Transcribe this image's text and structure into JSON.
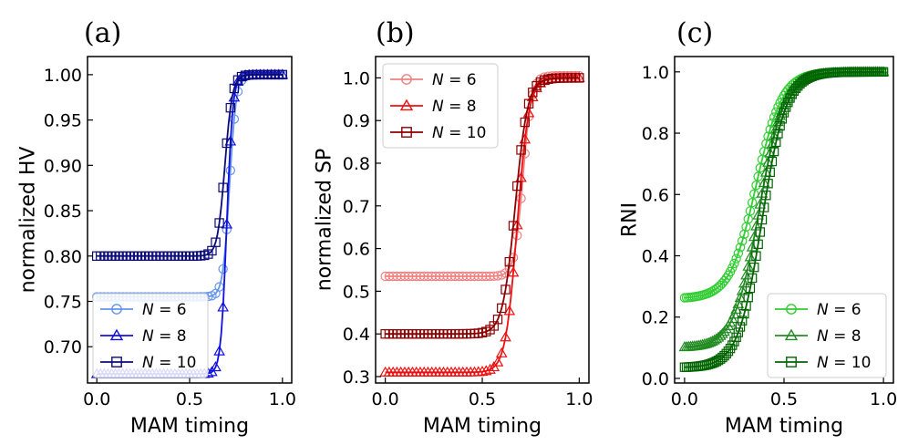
{
  "chart_data": [
    {
      "type": "line",
      "panel_label": "(a)",
      "xlabel": "MAM timing",
      "ylabel": "normalized HV",
      "xlim": [
        -0.05,
        1.05
      ],
      "ylim": [
        0.66,
        1.02
      ],
      "xticks": [
        0.0,
        0.5,
        1.0
      ],
      "xtick_labels": [
        "0.0",
        "0.5",
        "1.0"
      ],
      "yticks": [
        0.7,
        0.75,
        0.8,
        0.85,
        0.9,
        0.95,
        1.0
      ],
      "ytick_labels": [
        "0.70",
        "0.75",
        "0.80",
        "0.85",
        "0.90",
        "0.95",
        "1.00"
      ],
      "legend_position": "lower-left",
      "series": [
        {
          "name": "N = 6",
          "var": "N",
          "eq": " = 6",
          "marker": "circle",
          "color": "#6495ed",
          "low": 0.755,
          "high": 1.0,
          "center": 0.715,
          "width": 0.018,
          "markevery": 2
        },
        {
          "name": "N = 8",
          "var": "N",
          "eq": " = 8",
          "marker": "triangle",
          "color": "#1010e0",
          "low": 0.67,
          "high": 1.0,
          "center": 0.7,
          "width": 0.016,
          "markevery": 2
        },
        {
          "name": "N = 10",
          "var": "N",
          "eq": " = 10",
          "marker": "square",
          "color": "#0c0c78",
          "low": 0.8,
          "high": 1.0,
          "center": 0.69,
          "width": 0.02,
          "markevery": 2
        }
      ]
    },
    {
      "type": "line",
      "panel_label": "(b)",
      "xlabel": "MAM timing",
      "ylabel": "normalized SP",
      "xlim": [
        -0.05,
        1.05
      ],
      "ylim": [
        0.285,
        1.05
      ],
      "xticks": [
        0.0,
        0.5,
        1.0
      ],
      "xtick_labels": [
        "0.0",
        "0.5",
        "1.0"
      ],
      "yticks": [
        0.3,
        0.4,
        0.5,
        0.6,
        0.7,
        0.8,
        0.9,
        1.0
      ],
      "ytick_labels": [
        "0.3",
        "0.4",
        "0.5",
        "0.6",
        "0.7",
        "0.8",
        "0.9",
        "1.0"
      ],
      "legend_position": "top-left",
      "series": [
        {
          "name": "N = 6",
          "var": "N",
          "eq": " = 6",
          "marker": "circle",
          "color": "#f08080",
          "low": 0.535,
          "high": 1.005,
          "center": 0.71,
          "width": 0.022,
          "markevery": 2
        },
        {
          "name": "N = 8",
          "var": "N",
          "eq": " = 8",
          "marker": "triangle",
          "color": "#ee1111",
          "low": 0.31,
          "high": 1.0,
          "center": 0.68,
          "width": 0.03,
          "markevery": 2
        },
        {
          "name": "N = 10",
          "var": "N",
          "eq": " = 10",
          "marker": "square",
          "color": "#8b0000",
          "low": 0.4,
          "high": 1.0,
          "center": 0.67,
          "width": 0.032,
          "markevery": 2
        }
      ]
    },
    {
      "type": "line",
      "panel_label": "(c)",
      "xlabel": "MAM timing",
      "ylabel": "RNI",
      "xlim": [
        -0.05,
        1.05
      ],
      "ylim": [
        -0.015,
        1.05
      ],
      "xticks": [
        0.0,
        0.5,
        1.0
      ],
      "xtick_labels": [
        "0.0",
        "0.5",
        "1.0"
      ],
      "yticks": [
        0.0,
        0.2,
        0.4,
        0.6,
        0.8,
        1.0
      ],
      "ytick_labels": [
        "0.0",
        "0.2",
        "0.4",
        "0.6",
        "0.8",
        "1.0"
      ],
      "legend_position": "lower-right",
      "series": [
        {
          "name": "N = 6",
          "var": "N",
          "eq": " = 6",
          "marker": "circle",
          "color": "#32cd32",
          "low": 0.26,
          "high": 1.0,
          "center": 0.36,
          "width": 0.065,
          "markevery": 1
        },
        {
          "name": "N = 8",
          "var": "N",
          "eq": " = 8",
          "marker": "triangle",
          "color": "#228b22",
          "low": 0.1,
          "high": 1.0,
          "center": 0.375,
          "width": 0.063,
          "markevery": 1
        },
        {
          "name": "N = 10",
          "var": "N",
          "eq": " = 10",
          "marker": "square",
          "color": "#006400",
          "low": 0.035,
          "high": 1.0,
          "center": 0.39,
          "width": 0.06,
          "markevery": 1
        }
      ]
    }
  ]
}
